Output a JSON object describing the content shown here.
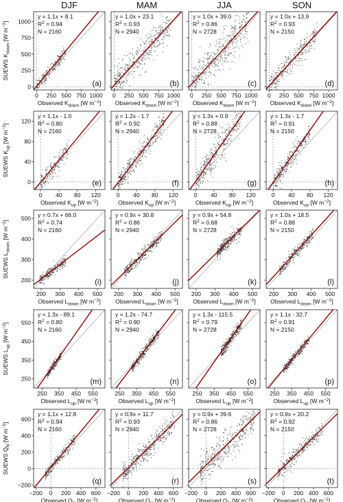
{
  "columns": [
    "DJF",
    "MAM",
    "JJA",
    "SON"
  ],
  "chart_data": [
    {
      "type": "scatter",
      "row": 0,
      "xlabel": {
        "main": "Observed K",
        "sub": "down",
        "unit": " [W m",
        "sup": "−2",
        "close": "]"
      },
      "ylabel": {
        "main": "SUEWS K",
        "sub": "down",
        "unit": " [W m",
        "sup": "−2",
        "close": "]"
      },
      "xlim": [
        -50,
        1150
      ],
      "ylim": [
        -50,
        1150
      ],
      "xticks": [
        0,
        250,
        500,
        750,
        1000
      ],
      "yticks": [
        0,
        250,
        500,
        750,
        1000
      ],
      "tick_labels": [
        "0",
        "250",
        "500",
        "750",
        "1000"
      ],
      "panels": [
        {
          "label": "(a)",
          "eq": "y = 1.1x + 8.1",
          "r2_val": "0.94",
          "n": "N = 2160",
          "slope": 1.1,
          "intercept": 8.1,
          "xr": [
            0,
            480
          ],
          "spread": 45,
          "count": 220
        },
        {
          "label": "(b)",
          "eq": "y = 1.0x + 23.1",
          "r2_val": "0.93",
          "n": "N = 2940",
          "slope": 1.0,
          "intercept": 23.1,
          "xr": [
            0,
            950
          ],
          "spread": 110,
          "count": 420
        },
        {
          "label": "(c)",
          "eq": "y = 1.0x + 39.0",
          "r2_val": "0.86",
          "n": "N = 2728",
          "slope": 1.0,
          "intercept": 39.0,
          "xr": [
            0,
            950
          ],
          "spread": 140,
          "count": 420
        },
        {
          "label": "(d)",
          "eq": "y = 1.0x + 13.9",
          "r2_val": "0.93",
          "n": "N = 2150",
          "slope": 1.0,
          "intercept": 13.9,
          "xr": [
            0,
            800
          ],
          "spread": 80,
          "count": 320
        }
      ]
    },
    {
      "type": "scatter",
      "row": 1,
      "xlabel": {
        "main": "Observed K",
        "sub": "up",
        "unit": " [W m",
        "sup": "−2",
        "close": "]"
      },
      "ylabel": {
        "main": "SUEWS K",
        "sub": "up",
        "unit": " [W m",
        "sup": "−2",
        "close": "]"
      },
      "xlim": [
        -15,
        140
      ],
      "ylim": [
        -15,
        140
      ],
      "xticks": [
        0,
        40,
        80,
        120
      ],
      "yticks": [
        0,
        40,
        80,
        120
      ],
      "tick_labels": [
        "0",
        "40",
        "80",
        "120"
      ],
      "panels": [
        {
          "label": "(e)",
          "eq": "y = 1.1x - 1.0",
          "r2_val": "0.80",
          "n": "N = 2160",
          "slope": 1.1,
          "intercept": -1.0,
          "xr": [
            0,
            60
          ],
          "spread": 9,
          "count": 200
        },
        {
          "label": "(f)",
          "eq": "y = 1.2x - 1.7",
          "r2_val": "0.92",
          "n": "N = 2940",
          "slope": 1.2,
          "intercept": -1.7,
          "xr": [
            0,
            100
          ],
          "spread": 10,
          "count": 380
        },
        {
          "label": "(g)",
          "eq": "y = 1.3x + 0.9",
          "r2_val": "0.88",
          "n": "N = 2728",
          "slope": 1.3,
          "intercept": 0.9,
          "xr": [
            0,
            100
          ],
          "spread": 13,
          "count": 380
        },
        {
          "label": "(h)",
          "eq": "y = 1.3x - 1.7",
          "r2_val": "0.91",
          "n": "N = 2150",
          "slope": 1.3,
          "intercept": -1.7,
          "xr": [
            0,
            80
          ],
          "spread": 9,
          "count": 300
        }
      ]
    },
    {
      "type": "scatter",
      "row": 2,
      "xlabel": {
        "main": "Observed L",
        "sub": "down",
        "unit": " [W m",
        "sup": "−2",
        "close": "]"
      },
      "ylabel": {
        "main": "SUEWS L",
        "sub": "down",
        "unit": " [W m",
        "sup": "−2",
        "close": "]"
      },
      "xlim": [
        160,
        540
      ],
      "ylim": [
        160,
        540
      ],
      "xticks": [
        200,
        300,
        400,
        500
      ],
      "yticks": [
        200,
        300,
        400,
        500
      ],
      "tick_labels": [
        "200",
        "300",
        "400",
        "500"
      ],
      "panels": [
        {
          "label": "(i)",
          "eq": "y = 0.7x + 66.0",
          "r2_val": "0.74",
          "n": "N = 2160",
          "slope": 0.7,
          "intercept": 66.0,
          "xr": [
            190,
            330
          ],
          "spread": 12,
          "count": 260
        },
        {
          "label": "(j)",
          "eq": "y = 0.9x + 30.8",
          "r2_val": "0.86",
          "n": "N = 2940",
          "slope": 0.9,
          "intercept": 30.8,
          "xr": [
            230,
            430
          ],
          "spread": 14,
          "count": 360
        },
        {
          "label": "(k)",
          "eq": "y = 0.9x + 54.8",
          "r2_val": "0.68",
          "n": "N = 2728",
          "slope": 0.9,
          "intercept": 54.8,
          "xr": [
            310,
            440
          ],
          "spread": 15,
          "count": 340
        },
        {
          "label": "(l)",
          "eq": "y = 1.0x + 18.5",
          "r2_val": "0.88",
          "n": "N = 2150",
          "slope": 1.0,
          "intercept": 18.5,
          "xr": [
            230,
            410
          ],
          "spread": 14,
          "count": 320
        }
      ]
    },
    {
      "type": "scatter",
      "row": 3,
      "xlabel": {
        "main": "Observed L",
        "sub": "up",
        "unit": " [W m",
        "sup": "−2",
        "close": "]"
      },
      "ylabel": {
        "main": "SUEWS L",
        "sub": "up",
        "unit": " [W m",
        "sup": "−2",
        "close": "]"
      },
      "xlim": [
        200,
        620
      ],
      "ylim": [
        200,
        620
      ],
      "xticks": [
        250,
        350,
        450,
        550
      ],
      "yticks": [
        250,
        350,
        450,
        550
      ],
      "tick_labels": [
        "250",
        "350",
        "450",
        "550"
      ],
      "panels": [
        {
          "label": "(m)",
          "eq": "y = 1.3x - 89.1",
          "r2_val": "0.80",
          "n": "N = 2160",
          "slope": 1.3,
          "intercept": -89.1,
          "xr": [
            280,
            360
          ],
          "spread": 10,
          "count": 260
        },
        {
          "label": "(n)",
          "eq": "y = 1.2x - 74.7",
          "r2_val": "0.90",
          "n": "N = 2940",
          "slope": 1.2,
          "intercept": -74.7,
          "xr": [
            320,
            480
          ],
          "spread": 12,
          "count": 380
        },
        {
          "label": "(o)",
          "eq": "y = 1.3x - 115.5",
          "r2_val": "0.79",
          "n": "N = 2728",
          "slope": 1.3,
          "intercept": -115.5,
          "xr": [
            390,
            510
          ],
          "spread": 14,
          "count": 360
        },
        {
          "label": "(p)",
          "eq": "y = 1.1x - 32.7",
          "r2_val": "0.91",
          "n": "N = 2150",
          "slope": 1.1,
          "intercept": -32.7,
          "xr": [
            300,
            450
          ],
          "spread": 11,
          "count": 320
        }
      ]
    },
    {
      "type": "scatter",
      "row": 4,
      "xlabel": {
        "main": "Observed Q",
        "sub": "N",
        "unit": " [W m",
        "sup": "−2",
        "close": "]"
      },
      "ylabel": {
        "main": "SUEWS Q",
        "sub": "N",
        "unit": " [W m",
        "sup": "−2",
        "close": "]"
      },
      "xlim": [
        -230,
        720
      ],
      "ylim": [
        -230,
        720
      ],
      "xticks": [
        -200,
        0,
        200,
        400,
        600
      ],
      "yticks": [
        -200,
        0,
        200,
        400,
        600
      ],
      "tick_labels": [
        "−200",
        "0",
        "200",
        "400",
        "600"
      ],
      "panels": [
        {
          "label": "(q)",
          "eq": "y = 1.1x + 12.8",
          "r2_val": "0.94",
          "n": "N = 2160",
          "slope": 1.1,
          "intercept": 12.8,
          "xr": [
            -80,
            320
          ],
          "spread": 30,
          "count": 260
        },
        {
          "label": "(r)",
          "eq": "y = 0.9x + 11.7",
          "r2_val": "0.93",
          "n": "N = 2940",
          "slope": 0.9,
          "intercept": 11.7,
          "xr": [
            -80,
            620
          ],
          "spread": 60,
          "count": 420
        },
        {
          "label": "(s)",
          "eq": "y = 0.9x + 39.6",
          "r2_val": "0.86",
          "n": "N = 2728",
          "slope": 0.9,
          "intercept": 39.6,
          "xr": [
            -80,
            640
          ],
          "spread": 90,
          "count": 420
        },
        {
          "label": "(t)",
          "eq": "y = 0.9x + 20.2",
          "r2_val": "0.92",
          "n": "N = 2150",
          "slope": 0.9,
          "intercept": 20.2,
          "xr": [
            -80,
            520
          ],
          "spread": 45,
          "count": 320
        }
      ]
    }
  ],
  "r2_prefix": "R",
  "r2_sup": "2",
  "r2_eq": " = ",
  "colors": {
    "fit_line": "#8b0000",
    "one_to_one": "#b0b0b0",
    "points": "#333333",
    "zero_lines": "#777777"
  }
}
